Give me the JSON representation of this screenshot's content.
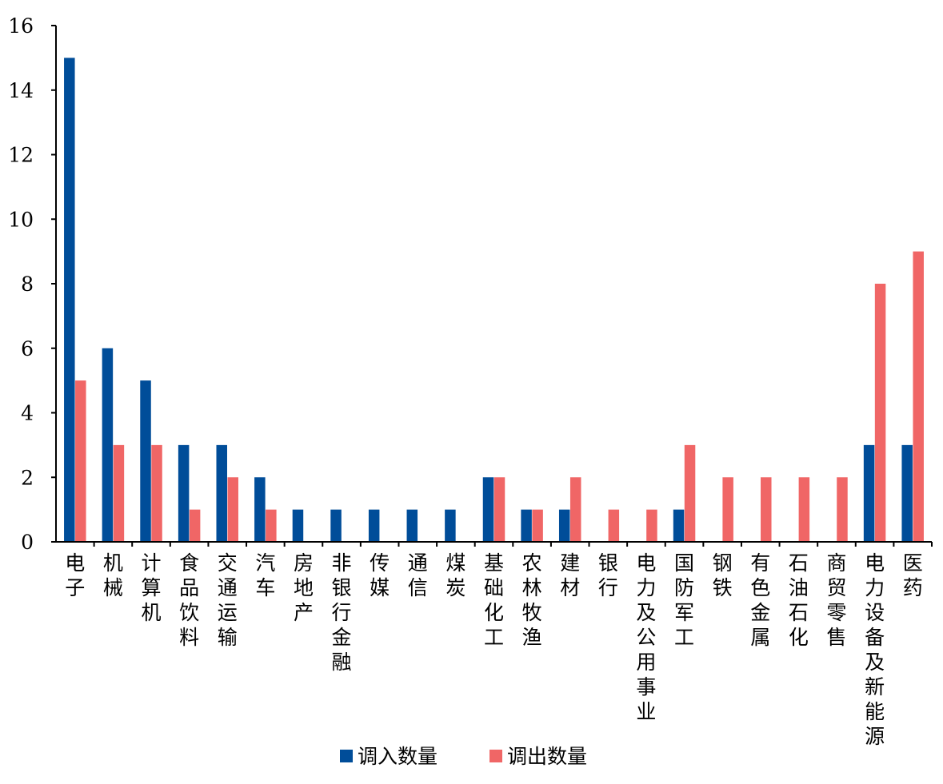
{
  "chart_data": {
    "type": "bar",
    "categories": [
      "电子",
      "机械",
      "计算机",
      "食品饮料",
      "交通运输",
      "汽车",
      "房地产",
      "非银行金融",
      "传媒",
      "通信",
      "煤炭",
      "基础化工",
      "农林牧渔",
      "建材",
      "银行",
      "电力及公用事业",
      "国防军工",
      "钢铁",
      "有色金属",
      "石油石化",
      "商贸零售",
      "电力设备及新能源",
      "医药"
    ],
    "series": [
      {
        "name": "调入数量",
        "color": "#004d99",
        "values": [
          15,
          6,
          5,
          3,
          3,
          2,
          1,
          1,
          1,
          1,
          1,
          2,
          1,
          1,
          0,
          0,
          1,
          0,
          0,
          0,
          0,
          3,
          3
        ]
      },
      {
        "name": "调出数量",
        "color": "#f06666",
        "values": [
          5,
          3,
          3,
          1,
          2,
          1,
          0,
          0,
          0,
          0,
          0,
          2,
          1,
          2,
          1,
          1,
          3,
          2,
          2,
          2,
          2,
          8,
          9
        ]
      }
    ],
    "yticks": [
      "0",
      "2",
      "4",
      "6",
      "8",
      "10",
      "12",
      "14",
      "16"
    ],
    "ylim": [
      0,
      16
    ],
    "grid": false,
    "legend_position": "bottom-center"
  }
}
